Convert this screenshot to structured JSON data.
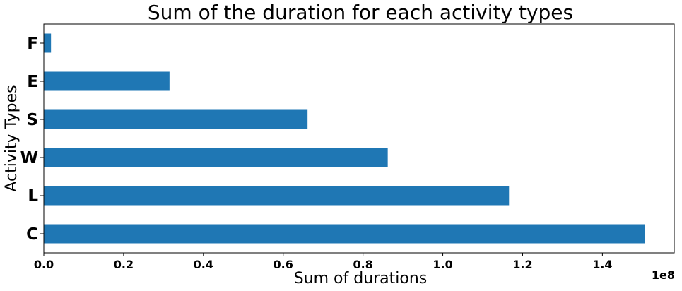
{
  "chart_data": {
    "type": "bar",
    "orientation": "horizontal",
    "title": "Sum of the duration for each activity types",
    "xlabel": "Sum of durations",
    "ylabel": "Activity Types",
    "x_offset_text": "1e8",
    "categories": [
      "C",
      "L",
      "W",
      "S",
      "E",
      "F"
    ],
    "values": [
      150700000,
      116600000,
      86200000,
      66100000,
      31500000,
      1800000
    ],
    "xlim": [
      0,
      158000000
    ],
    "xticks": [
      0,
      20000000,
      40000000,
      60000000,
      80000000,
      100000000,
      120000000,
      140000000
    ],
    "xtick_labels": [
      "0.0",
      "0.2",
      "0.4",
      "0.6",
      "0.8",
      "1.0",
      "1.2",
      "1.4"
    ],
    "bar_color": "#1f77b4",
    "grid": false,
    "legend": "none"
  }
}
